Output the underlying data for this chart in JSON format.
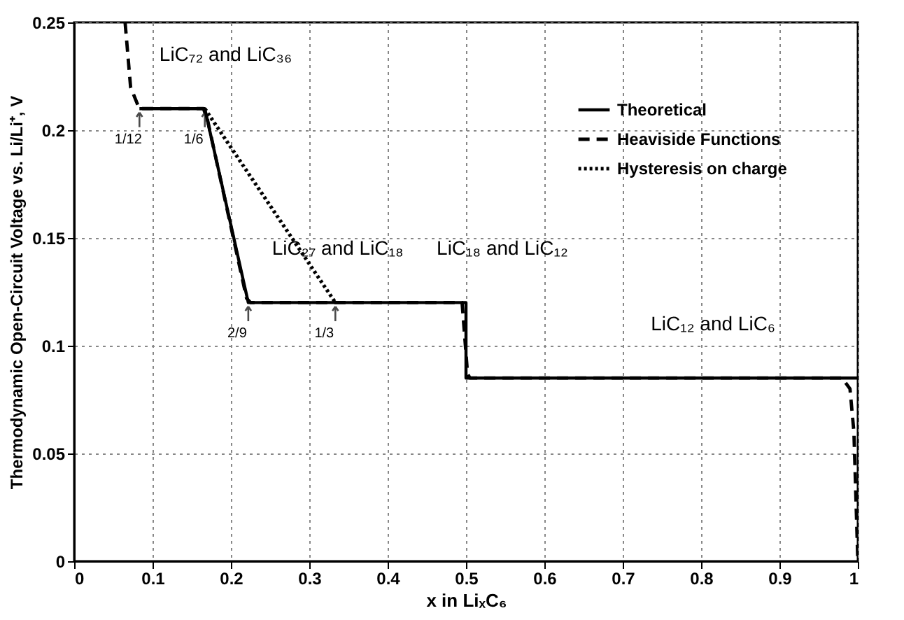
{
  "chart_data": {
    "type": "line",
    "xlabel": "x in LiₓC₆",
    "ylabel": "Thermodynamic Open-Circuit Voltage  vs.  Li/Li⁺, V",
    "xlim": [
      0,
      1
    ],
    "ylim": [
      0,
      0.25
    ],
    "xticks": [
      0,
      0.1,
      0.2,
      0.3,
      0.4,
      0.5,
      0.6,
      0.7,
      0.8,
      0.9,
      1
    ],
    "yticks": [
      0,
      0.05,
      0.1,
      0.15,
      0.2,
      0.25
    ],
    "grid": true,
    "legend": "top right",
    "marker": "none",
    "series": [
      {
        "name": "Theoretical",
        "color": "#000000",
        "line_style": "solid",
        "x": [
          0.0833,
          0.1667,
          0.2222,
          0.5,
          0.5,
          1.0
        ],
        "values": [
          0.21,
          0.21,
          0.12,
          0.12,
          0.085,
          0.085
        ]
      },
      {
        "name": "Heaviside Functions",
        "color": "#000000",
        "line_style": "dashed",
        "x": [
          0.065,
          0.072,
          0.083,
          0.165,
          0.17,
          0.22,
          0.225,
          0.495,
          0.502,
          0.505,
          0.98,
          0.99,
          0.995,
          1.0
        ],
        "values": [
          0.25,
          0.22,
          0.21,
          0.21,
          0.205,
          0.122,
          0.12,
          0.12,
          0.087,
          0.085,
          0.085,
          0.08,
          0.06,
          0
        ]
      },
      {
        "name": "Hysteresis on charge",
        "color": "#000000",
        "line_style": "dotted",
        "x": [
          0.1667,
          0.3333
        ],
        "values": [
          0.21,
          0.12
        ]
      }
    ],
    "annotations": [
      {
        "text": "LiC₇₂ and LiC₃₆",
        "x": 0.113,
        "y": 0.21
      },
      {
        "text": "LiC₂₇ and LiC₁₈",
        "x": 0.256,
        "y": 0.12
      },
      {
        "text": "LiC₁₈ and LiC₁₂",
        "x": 0.466,
        "y": 0.12
      },
      {
        "text": "LiC₁₂ and LiC₆",
        "x": 0.735,
        "y": 0.085
      },
      {
        "text": "1/12",
        "x": 0.0833,
        "y": 0.21
      },
      {
        "text": "1/6",
        "x": 0.1667,
        "y": 0.21
      },
      {
        "text": "2/9",
        "x": 0.2222,
        "y": 0.12
      },
      {
        "text": "1/3",
        "x": 0.3333,
        "y": 0.12
      }
    ]
  }
}
